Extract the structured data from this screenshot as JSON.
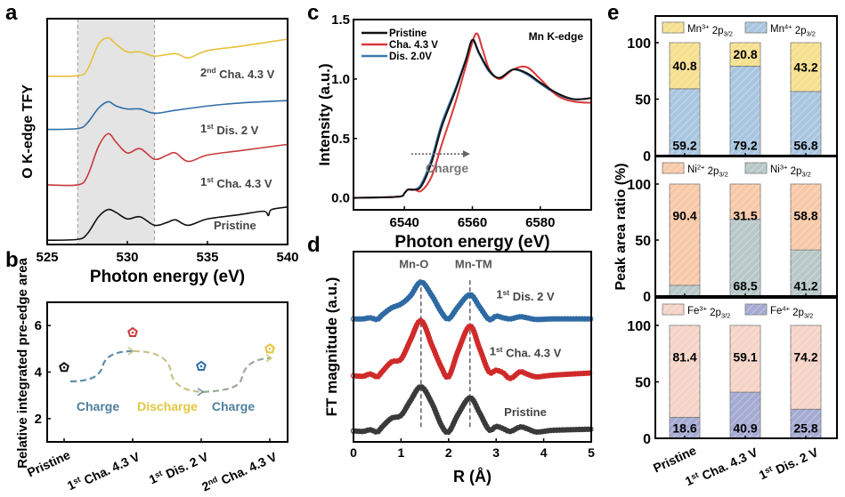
{
  "panels": {
    "a": "a",
    "b": "b",
    "c": "c",
    "d": "d",
    "e": "e"
  },
  "chart_data": [
    {
      "id": "a",
      "type": "line",
      "title": "",
      "xlabel": "Photon energy (eV)",
      "ylabel": "O K-edge TFY",
      "xlim": [
        525,
        540
      ],
      "xticks": [
        "525",
        "530",
        "535",
        "540"
      ],
      "shaded_region": [
        526.9,
        531.7
      ],
      "series": [
        {
          "name": "Pristine",
          "color": "#111111",
          "x": [
            525,
            526.9,
            527.5,
            528.2,
            528.8,
            529.3,
            530,
            530.8,
            531.7,
            532.5,
            533,
            533.8,
            535,
            537,
            538.5,
            538.8,
            539,
            540
          ],
          "y": [
            0.0,
            0.02,
            0.15,
            0.55,
            0.72,
            0.65,
            0.5,
            0.55,
            0.35,
            0.42,
            0.48,
            0.35,
            0.5,
            0.6,
            0.68,
            0.58,
            0.72,
            0.78
          ]
        },
        {
          "name": "1st Cha. 4.3 V",
          "color": "#c8393b",
          "x": [
            525,
            526.9,
            527.5,
            528.2,
            528.8,
            529.3,
            530,
            530.8,
            531.7,
            532.5,
            533,
            533.8,
            535,
            537,
            540
          ],
          "y": [
            1.3,
            1.3,
            1.5,
            2.2,
            2.5,
            2.3,
            2.05,
            2.15,
            1.9,
            2.0,
            2.05,
            1.85,
            2.0,
            2.1,
            2.25
          ]
        },
        {
          "name": "1st Dis. 2 V",
          "color": "#2f6ea8",
          "x": [
            525,
            526.9,
            527.5,
            528.2,
            528.8,
            529.3,
            530,
            530.8,
            531.7,
            533,
            535,
            537,
            540
          ],
          "y": [
            2.6,
            2.62,
            2.75,
            3.1,
            3.25,
            3.15,
            3.08,
            3.08,
            2.98,
            3.05,
            3.15,
            3.22,
            3.28
          ]
        },
        {
          "name": "2nd Cha. 4.3 V",
          "color": "#e8c23a",
          "x": [
            525,
            526.9,
            527.5,
            528.2,
            528.8,
            529.3,
            530,
            530.8,
            531.7,
            533,
            533.8,
            535,
            537,
            540
          ],
          "y": [
            3.85,
            3.86,
            4.0,
            4.6,
            4.75,
            4.6,
            4.42,
            4.42,
            4.32,
            4.38,
            4.28,
            4.45,
            4.55,
            4.72
          ]
        }
      ],
      "annotations": [
        {
          "text": "2",
          "sup": "nd",
          "rest": " Cha. 4.3 V"
        },
        {
          "text": "1",
          "sup": "st",
          "rest": " Dis. 2 V"
        },
        {
          "text": "1",
          "sup": "st",
          "rest": " Cha. 4.3 V"
        },
        {
          "text": "Pristine",
          "sup": "",
          "rest": ""
        }
      ]
    },
    {
      "id": "b",
      "type": "scatter",
      "xlabel": "",
      "ylabel": "Relative integrated pre-edge area",
      "ylim": [
        1,
        7
      ],
      "yticks": [
        "2",
        "4",
        "6"
      ],
      "categories": [
        {
          "main": "Pristine",
          "sup": "",
          "pre": ""
        },
        {
          "pre": "1",
          "sup": "st",
          "main": " Cha. 4.3 V"
        },
        {
          "pre": "1",
          "sup": "st",
          "main": " Dis. 2 V"
        },
        {
          "pre": "2",
          "sup": "nd",
          "main": " Cha. 4.3 V"
        }
      ],
      "values": [
        4.2,
        5.7,
        4.25,
        5.0
      ],
      "colors": [
        "#111111",
        "#c8393b",
        "#2f6ea8",
        "#e8c23a"
      ],
      "annotations": [
        {
          "text": "Charge",
          "color": "#4d7f9e"
        },
        {
          "text": "Discharge",
          "color": "#e3c642"
        },
        {
          "text": "Charge",
          "color": "#4d7f9e"
        }
      ]
    },
    {
      "id": "c",
      "type": "line",
      "xlabel": "Photon energy (eV)",
      "ylabel": "Intensity (a.u.)",
      "xlim": [
        6525,
        6595
      ],
      "ylim": [
        -0.1,
        1.5
      ],
      "xticks": [
        "6540",
        "6560",
        "6580"
      ],
      "yticks": [
        "0.0",
        "0.5",
        "1.0",
        "1.5"
      ],
      "inset_title": "Mn K-edge",
      "arrow_label": "Charge",
      "series": [
        {
          "name": "Pristine",
          "color": "#111111",
          "x": [
            6525,
            6538,
            6540,
            6541,
            6543,
            6545,
            6548,
            6551,
            6555,
            6558,
            6560,
            6562,
            6565,
            6568,
            6572,
            6576,
            6580,
            6585,
            6590,
            6595
          ],
          "y": [
            0,
            0.01,
            0.04,
            0.07,
            0.07,
            0.1,
            0.3,
            0.6,
            0.9,
            1.15,
            1.33,
            1.22,
            1.07,
            1.01,
            1.08,
            1.05,
            0.97,
            0.88,
            0.83,
            0.84
          ]
        },
        {
          "name": "Cha. 4.3 V",
          "color": "#d9383a",
          "x": [
            6525,
            6538,
            6540,
            6541,
            6543,
            6545,
            6548,
            6551,
            6555,
            6558,
            6561,
            6563,
            6565,
            6568,
            6572,
            6576,
            6580,
            6585,
            6590,
            6595
          ],
          "y": [
            0,
            0.01,
            0.04,
            0.07,
            0.07,
            0.06,
            0.18,
            0.45,
            0.8,
            1.1,
            1.38,
            1.25,
            1.08,
            1.0,
            1.08,
            1.1,
            1.0,
            0.86,
            0.81,
            0.8
          ]
        },
        {
          "name": "Dis. 2.0V",
          "color": "#3b78b0",
          "x": [
            6525,
            6538,
            6540,
            6541,
            6543,
            6545,
            6548,
            6551,
            6555,
            6558,
            6560,
            6562,
            6565,
            6568,
            6572,
            6576,
            6580,
            6585,
            6590,
            6595
          ],
          "y": [
            0,
            0.01,
            0.04,
            0.07,
            0.07,
            0.12,
            0.33,
            0.63,
            0.92,
            1.16,
            1.32,
            1.21,
            1.06,
            1.01,
            1.08,
            1.04,
            0.96,
            0.87,
            0.83,
            0.84
          ]
        }
      ]
    },
    {
      "id": "d",
      "type": "scatter",
      "xlabel": "R (Å)",
      "ylabel": "FT magnitude (a.u.)",
      "xlim": [
        0,
        5
      ],
      "xticks": [
        "0",
        "1",
        "2",
        "3",
        "4",
        "5"
      ],
      "reference_lines": [
        {
          "x": 1.42,
          "label": "Mn-O"
        },
        {
          "x": 2.45,
          "label": "Mn-TM"
        }
      ],
      "series": [
        {
          "name": "Pristine",
          "color": "#3a3a3a",
          "label_pre": "",
          "label_sup": "",
          "label_main": "Pristine",
          "x": [
            0,
            0.2,
            0.35,
            0.5,
            0.6,
            0.8,
            1.0,
            1.2,
            1.42,
            1.65,
            1.85,
            2.0,
            2.2,
            2.45,
            2.65,
            2.85,
            3.0,
            3.15,
            3.3,
            3.5,
            3.65,
            3.85,
            4.2,
            5.0
          ],
          "y": [
            0.05,
            0.04,
            0.07,
            0.03,
            0.12,
            0.28,
            0.33,
            0.6,
            0.85,
            0.55,
            0.15,
            0.03,
            0.35,
            0.65,
            0.38,
            0.07,
            0.13,
            0.09,
            0.04,
            0.12,
            0.09,
            0.03,
            0.06,
            0.08
          ]
        },
        {
          "name": "1st Cha. 4.3 V",
          "color": "#d02a2a",
          "label_pre": "1",
          "label_sup": "st",
          "label_main": " Cha. 4.3 V",
          "x": [
            0,
            0.2,
            0.35,
            0.5,
            0.6,
            0.8,
            1.0,
            1.2,
            1.42,
            1.65,
            1.85,
            2.0,
            2.2,
            2.45,
            2.65,
            2.85,
            3.0,
            3.15,
            3.3,
            3.5,
            3.65,
            3.85,
            4.2,
            5.0
          ],
          "y": [
            1.05,
            1.04,
            1.08,
            1.03,
            1.12,
            1.3,
            1.35,
            1.7,
            2.05,
            1.6,
            1.2,
            1.03,
            1.5,
            1.95,
            1.55,
            1.12,
            1.15,
            1.1,
            1.0,
            1.12,
            1.08,
            1.03,
            1.06,
            1.1
          ]
        },
        {
          "name": "1st Dis. 2 V",
          "color": "#2e6aa3",
          "label_pre": "1",
          "label_sup": "st",
          "label_main": " Dis. 2 V",
          "x": [
            0,
            0.2,
            0.35,
            0.5,
            0.6,
            0.8,
            1.0,
            1.2,
            1.42,
            1.65,
            1.85,
            2.0,
            2.2,
            2.45,
            2.65,
            2.85,
            3.0,
            3.15,
            3.3,
            3.5,
            3.65,
            3.85,
            4.2,
            5.0
          ],
          "y": [
            2.08,
            2.08,
            2.1,
            2.07,
            2.15,
            2.28,
            2.35,
            2.5,
            2.75,
            2.5,
            2.2,
            2.08,
            2.3,
            2.52,
            2.3,
            2.07,
            2.13,
            2.1,
            2.08,
            2.12,
            2.1,
            2.07,
            2.08,
            2.08
          ]
        }
      ]
    },
    {
      "id": "e",
      "type": "bar",
      "stacked": true,
      "ylabel": "Peak area ratio (%)",
      "ylim": [
        0,
        100
      ],
      "yticks": [
        "0",
        "50",
        "100"
      ],
      "categories": [
        {
          "pre": "",
          "sup": "",
          "main": "Pristine"
        },
        {
          "pre": "1",
          "sup": "st",
          "main": " Cha. 4.3 V"
        },
        {
          "pre": "1",
          "sup": "st",
          "main": " Dis. 2 V"
        }
      ],
      "subplots": [
        {
          "legend": [
            {
              "el": "Mn",
              "ox": "3+",
              "orb": " 2p",
              "sub": "3/2",
              "color": "#f6e08e"
            },
            {
              "el": "Mn",
              "ox": "4+",
              "orb": " 2p",
              "sub": "3/2",
              "color": "#a9c6e0"
            }
          ],
          "bottom": {
            "name": "Mn4+ 2p3/2",
            "values": [
              59.2,
              79.2,
              56.8
            ],
            "color": "#a9c6e0"
          },
          "top": {
            "name": "Mn3+ 2p3/2",
            "values": [
              40.8,
              20.8,
              43.2
            ],
            "color": "#f6e08e"
          },
          "top_labels": [
            "40.8",
            "20.8",
            "43.2"
          ],
          "bottom_labels": [
            "59.2",
            "79.2",
            "56.8"
          ]
        },
        {
          "legend": [
            {
              "el": "Ni",
              "ox": "2+",
              "orb": " 2p",
              "sub": "3/2",
              "color": "#f8c9a8"
            },
            {
              "el": "Ni",
              "ox": "3+",
              "orb": " 2p",
              "sub": "3/2",
              "color": "#b8c8c8"
            }
          ],
          "bottom": {
            "name": "Ni3+ 2p3/2",
            "values": [
              9.6,
              68.5,
              41.2
            ],
            "color": "#b8c8c8"
          },
          "top": {
            "name": "Ni2+ 2p3/2",
            "values": [
              90.4,
              31.5,
              58.8
            ],
            "color": "#f8c9a8"
          },
          "top_labels": [
            "90.4",
            "31.5",
            "58.8"
          ],
          "bottom_labels": [
            "",
            "68.5",
            "41.2"
          ]
        },
        {
          "legend": [
            {
              "el": "Fe",
              "ox": "3+",
              "orb": " 2p",
              "sub": "3/2",
              "color": "#f5d3c6"
            },
            {
              "el": "Fe",
              "ox": "4+",
              "orb": " 2p",
              "sub": "3/2",
              "color": "#a5abd3"
            }
          ],
          "bottom": {
            "name": "Fe4+ 2p3/2",
            "values": [
              18.6,
              40.9,
              25.8
            ],
            "color": "#a5abd3"
          },
          "top": {
            "name": "Fe3+ 2p3/2",
            "values": [
              81.4,
              59.1,
              74.2
            ],
            "color": "#f5d3c6"
          },
          "top_labels": [
            "81.4",
            "59.1",
            "74.2"
          ],
          "bottom_labels": [
            "18.6",
            "40.9",
            "25.8"
          ]
        }
      ]
    }
  ]
}
